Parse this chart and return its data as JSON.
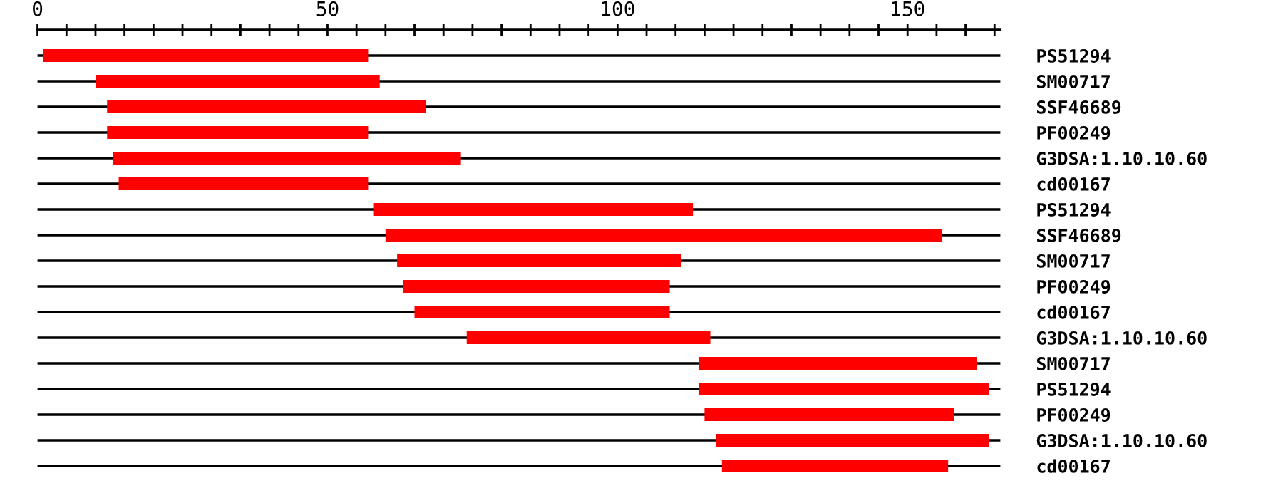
{
  "chart_data": {
    "type": "bar",
    "orientation": "horizontal",
    "color": "#ff0000",
    "grid": "y",
    "categories": [
      "PS51294",
      "SM00717",
      "SSF46689",
      "PF00249",
      "G3DSA:1.10.10.60",
      "cd00167",
      "PS51294",
      "SSF46689",
      "SM00717",
      "PF00249",
      "cd00167",
      "G3DSA:1.10.10.60",
      "SM00717",
      "PS51294",
      "PF00249",
      "G3DSA:1.10.10.60",
      "cd00167"
    ],
    "base": [
      1,
      10,
      12,
      12,
      13,
      14,
      58,
      60,
      62,
      63,
      65,
      74,
      114,
      114,
      115,
      117,
      118
    ],
    "values": [
      56,
      49,
      55,
      45,
      60,
      43,
      55,
      96,
      49,
      46,
      44,
      42,
      48,
      50,
      43,
      47,
      39
    ],
    "xlim": [
      0,
      166
    ],
    "xticks": [
      0,
      {
        "value": 5,
        "label": null
      },
      {
        "value": 10,
        "label": null
      },
      {
        "value": 15,
        "label": null
      },
      {
        "value": 20,
        "label": null
      },
      {
        "value": 25,
        "label": null
      },
      {
        "value": 30,
        "label": null
      },
      {
        "value": 35,
        "label": null
      },
      {
        "value": 40,
        "label": null
      },
      {
        "value": 45,
        "label": null
      },
      50,
      {
        "value": 55,
        "label": null
      },
      {
        "value": 60,
        "label": null
      },
      {
        "value": 65,
        "label": null
      },
      {
        "value": 70,
        "label": null
      },
      {
        "value": 75,
        "label": null
      },
      {
        "value": 80,
        "label": null
      },
      {
        "value": 85,
        "label": null
      },
      {
        "value": 90,
        "label": null
      },
      {
        "value": 95,
        "label": null
      },
      100,
      {
        "value": 105,
        "label": null
      },
      {
        "value": 110,
        "label": null
      },
      {
        "value": 115,
        "label": null
      },
      {
        "value": 120,
        "label": null
      },
      {
        "value": 125,
        "label": null
      },
      {
        "value": 130,
        "label": null
      },
      {
        "value": 135,
        "label": null
      },
      {
        "value": 140,
        "label": null
      },
      {
        "value": 145,
        "label": null
      },
      150,
      {
        "value": 155,
        "label": null
      },
      {
        "value": 160,
        "label": null
      },
      {
        "value": 165,
        "label": null
      }
    ]
  }
}
